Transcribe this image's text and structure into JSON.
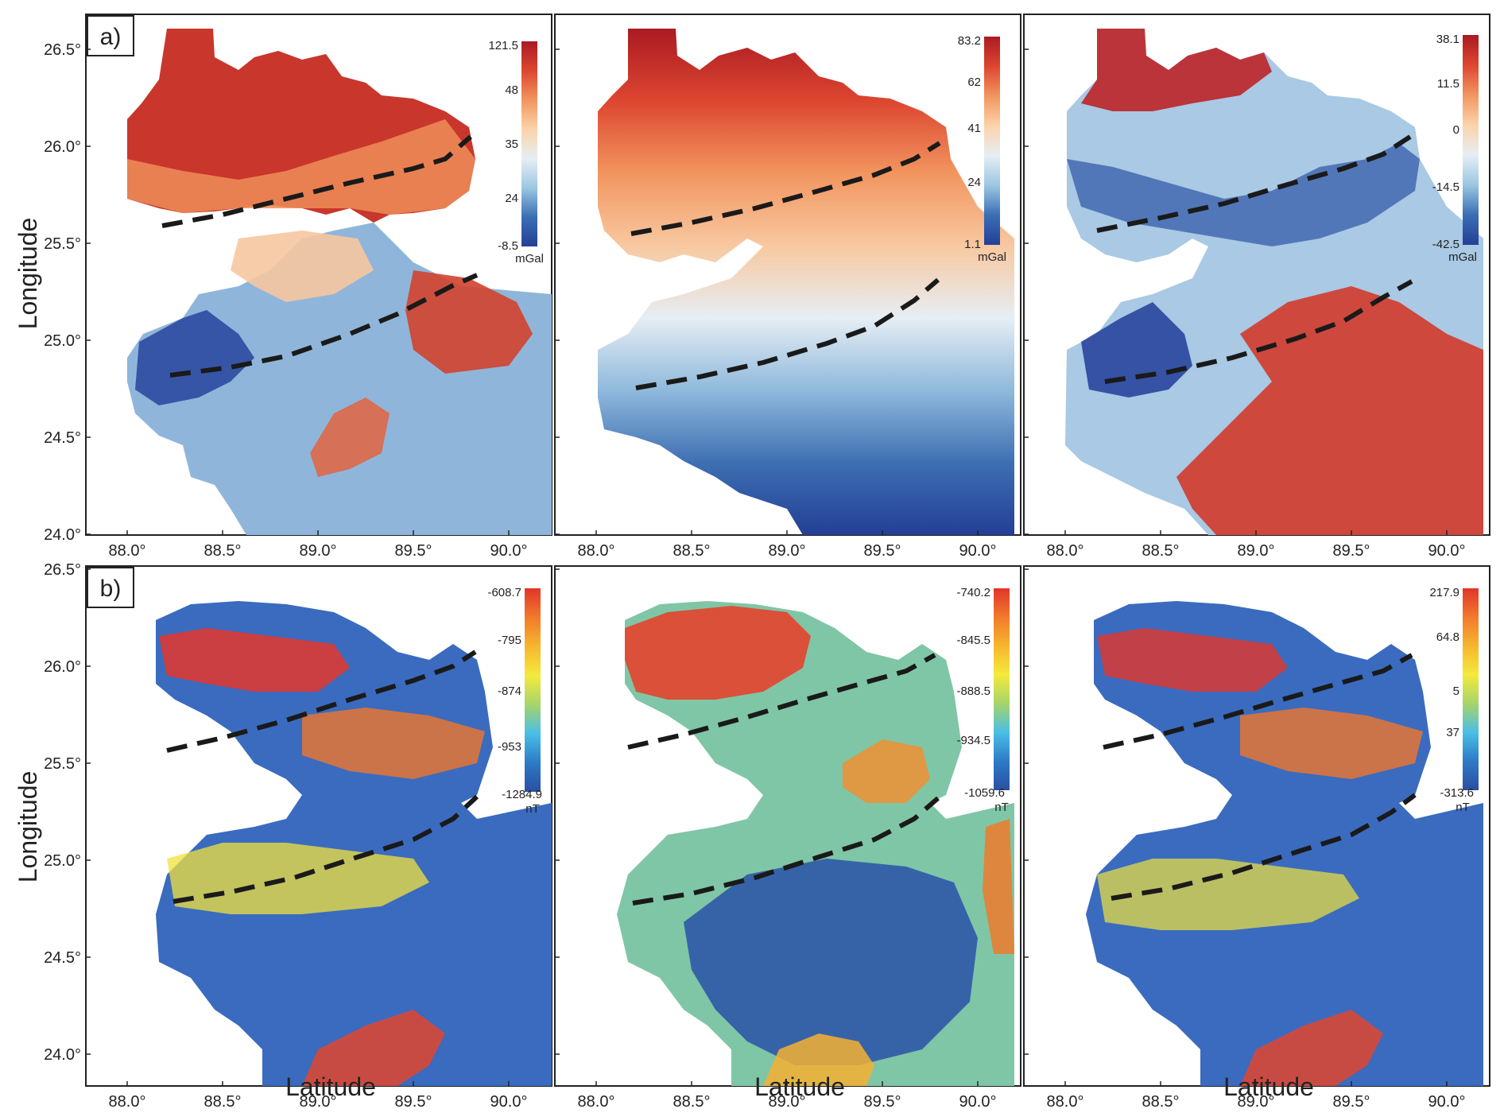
{
  "figure": {
    "x_axis_label": "Latitude",
    "y_axis_label": "Longitude",
    "x_ticks": [
      "88.0°",
      "88.5°",
      "89.0°",
      "89.5°",
      "90.0°"
    ],
    "y_ticks": [
      "26.5°",
      "26.0°",
      "25.5°",
      "25.0°",
      "24.5°",
      "24.0°"
    ]
  },
  "rows": [
    {
      "label": "a)",
      "panels": [
        {
          "colorbar": {
            "max": "121.5",
            "ticks": [
              "48",
              "35",
              "24"
            ],
            "min": "-8.5",
            "unit": "mGal",
            "palette": "diverging"
          }
        },
        {
          "colorbar": {
            "max": "83.2",
            "ticks": [
              "62",
              "41",
              "24"
            ],
            "min": "1.1",
            "unit": "mGal",
            "palette": "diverging"
          }
        },
        {
          "colorbar": {
            "max": "38.1",
            "ticks": [
              "11.5",
              "0",
              "-14.5"
            ],
            "min": "-42.5",
            "unit": "mGal",
            "palette": "diverging"
          }
        }
      ]
    },
    {
      "label": "b)",
      "panels": [
        {
          "colorbar": {
            "max": "-608.7",
            "ticks": [
              "-795",
              "-874",
              "-953"
            ],
            "min": "-1284.9",
            "unit": "nT",
            "palette": "jet"
          }
        },
        {
          "colorbar": {
            "max": "-740.2",
            "ticks": [
              "-845.5",
              "-888.5",
              "-934.5"
            ],
            "min": "-1059.6",
            "unit": "nT",
            "palette": "jet"
          }
        },
        {
          "colorbar": {
            "max": "217.9",
            "ticks": [
              "64.8",
              "5",
              "37"
            ],
            "min": "-313.6",
            "unit": "nT",
            "palette": "jet"
          }
        }
      ]
    }
  ],
  "colors": {
    "diverging": [
      "#aa1a22",
      "#dd4630",
      "#f2955f",
      "#fbd3a9",
      "#e6eef4",
      "#9cc6e2",
      "#3a6fb4",
      "#243f96"
    ],
    "jet": [
      "#e1352a",
      "#f17a2c",
      "#f6b62f",
      "#f4ea3c",
      "#a6d46b",
      "#49bfe6",
      "#2d7ac6",
      "#2b4fa0"
    ],
    "fault_line": "#1a1a1a"
  }
}
